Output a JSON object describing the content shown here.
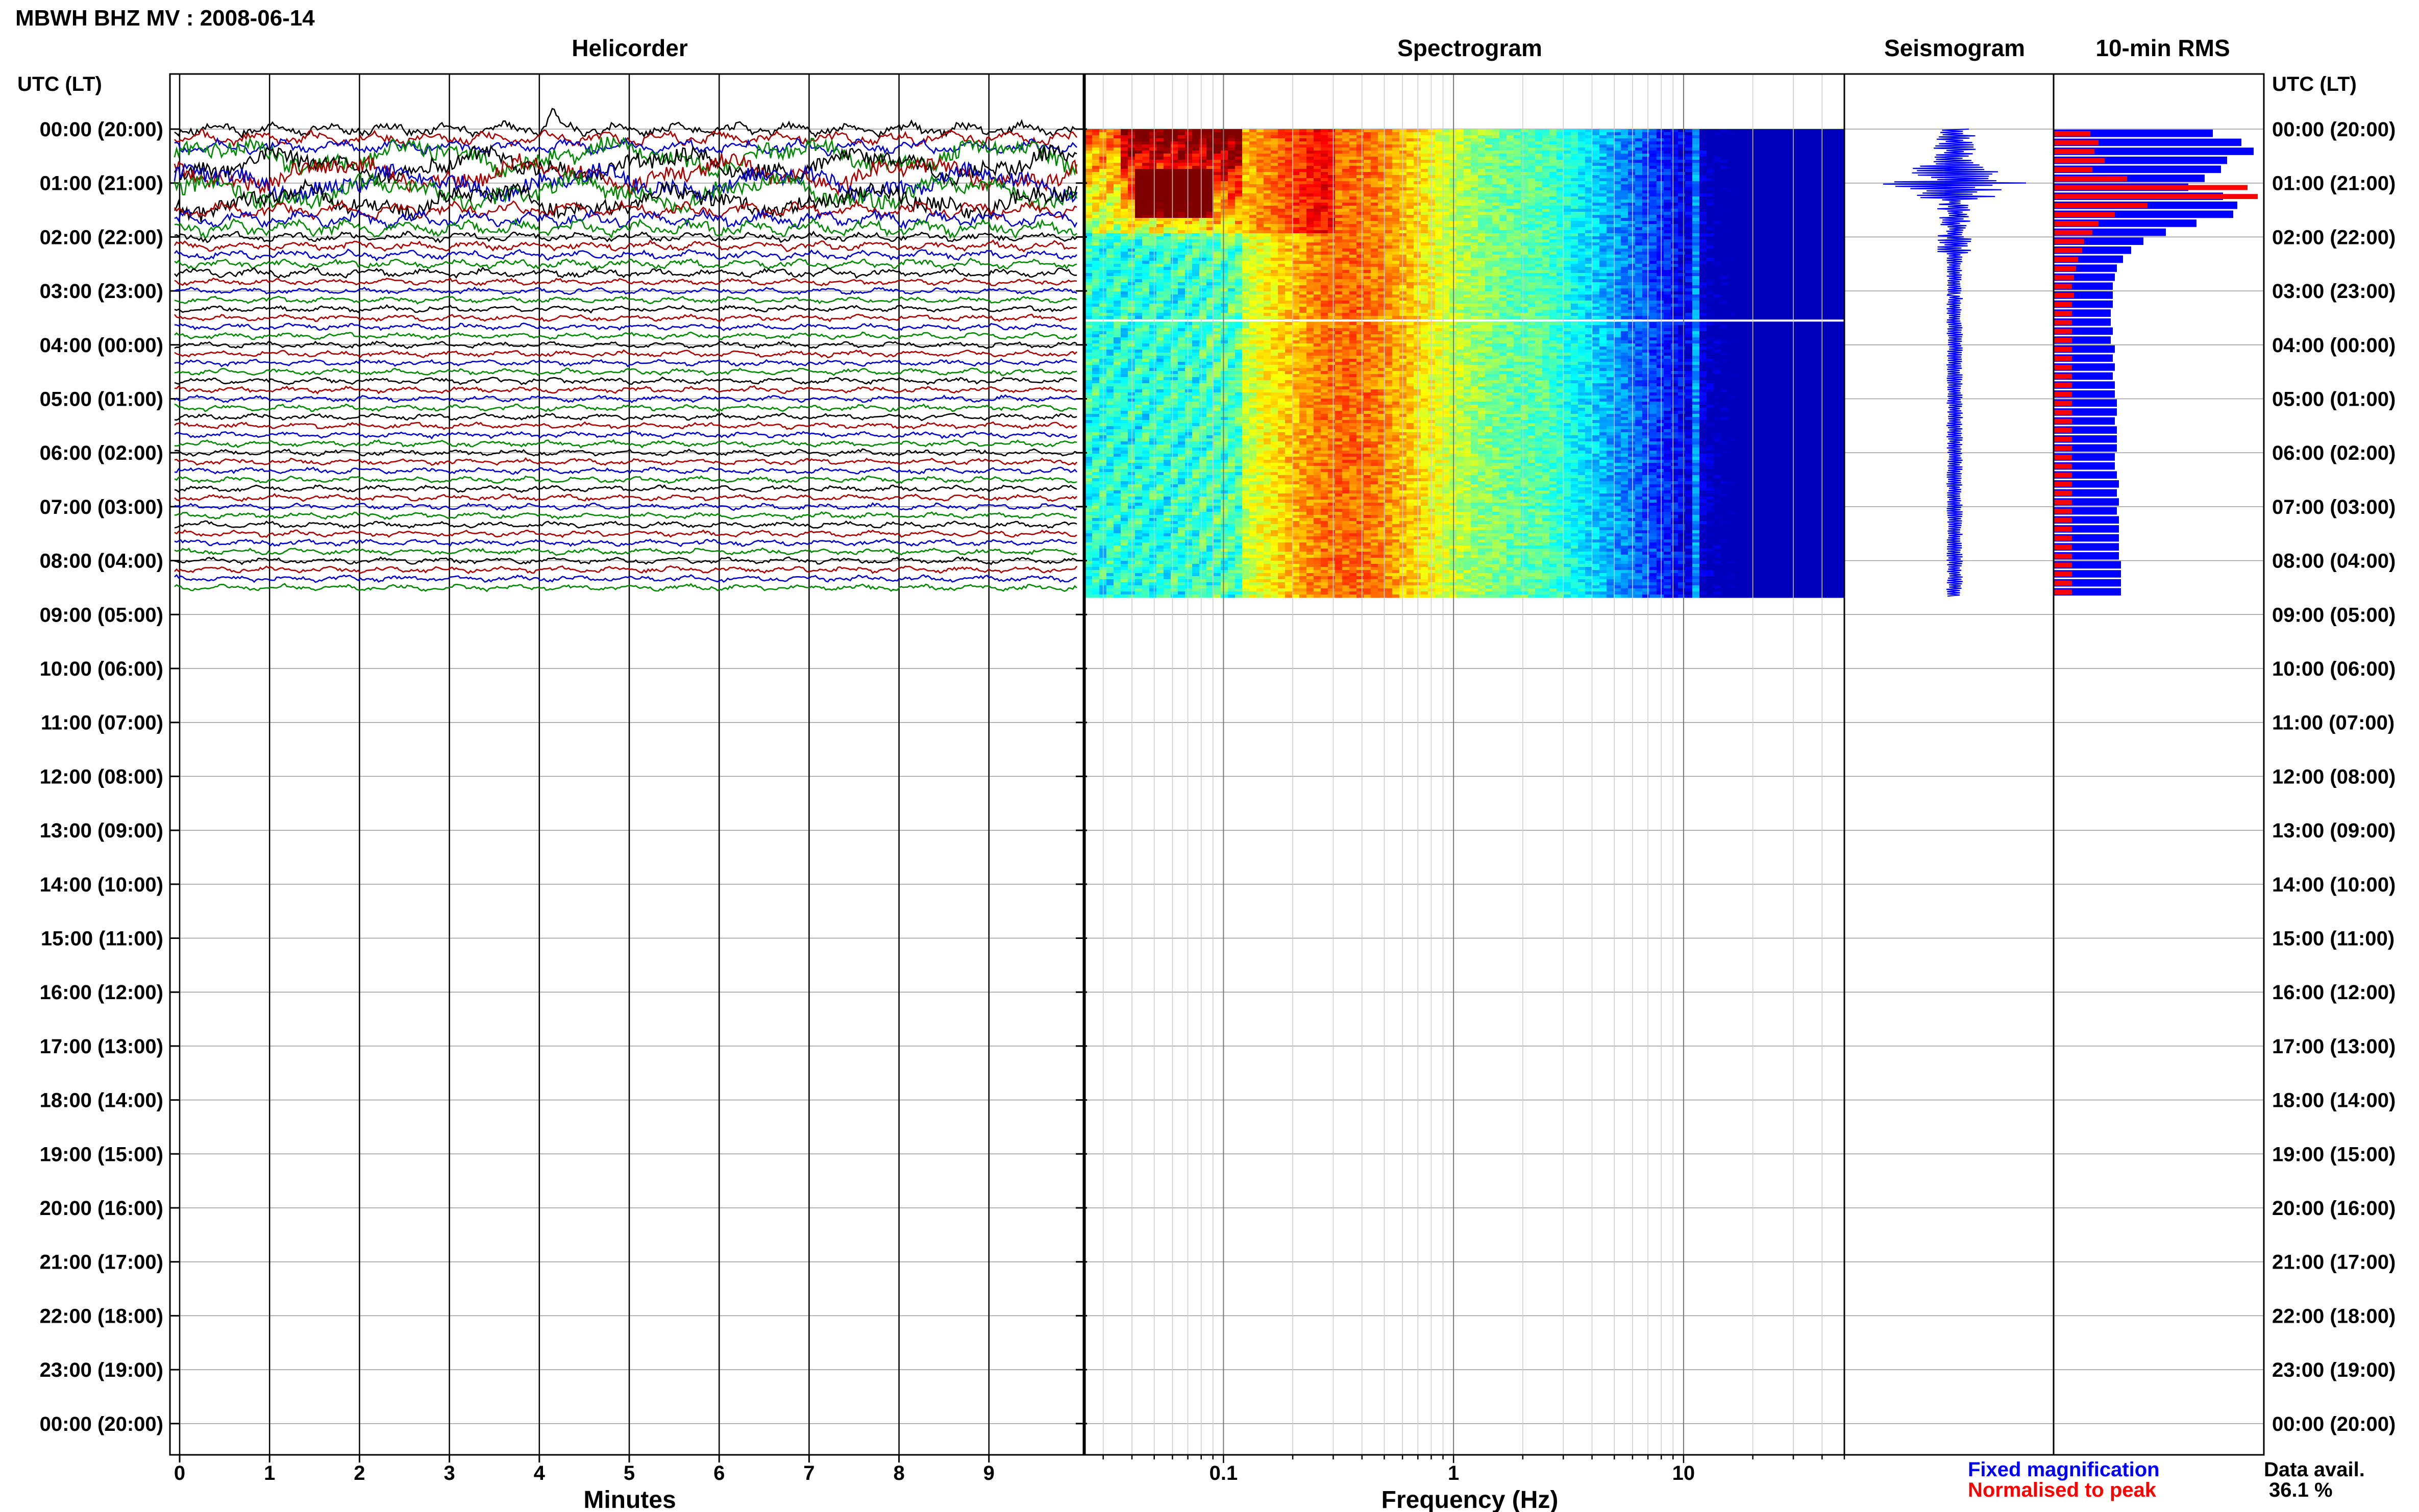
{
  "header": {
    "title": "MBWH BHZ MV : 2008-06-14",
    "utc_label_left": "UTC (LT)",
    "utc_label_right": "UTC (LT)"
  },
  "panels": {
    "helicorder": "Helicorder",
    "spectrogram": "Spectrogram",
    "seismogram": "Seismogram",
    "rms": "10-min RMS"
  },
  "legend": {
    "fixed": "Fixed magnification",
    "normalised": "Normalised to peak",
    "data_avail_label": "Data avail.",
    "data_avail_value": "36.1 %"
  },
  "colors": {
    "fixed": "#0000ff",
    "normalised": "#ff0000",
    "trace_cycle": [
      "#000000",
      "#aa0000",
      "#0000cc",
      "#008800"
    ]
  },
  "chart_data": [
    {
      "type": "line",
      "name": "helicorder",
      "xlabel": "Minutes",
      "x_ticks": [
        0,
        1,
        2,
        3,
        4,
        5,
        6,
        7,
        8,
        9
      ],
      "xlim": [
        0,
        10
      ],
      "time_labels": [
        "00:00 (20:00)",
        "01:00 (21:00)",
        "02:00 (22:00)",
        "03:00 (23:00)",
        "04:00 (00:00)",
        "05:00 (01:00)",
        "06:00 (02:00)",
        "07:00 (03:00)",
        "08:00 (04:00)",
        "09:00 (05:00)",
        "10:00 (06:00)",
        "11:00 (07:00)",
        "12:00 (08:00)",
        "13:00 (09:00)",
        "14:00 (10:00)",
        "15:00 (11:00)",
        "16:00 (12:00)",
        "17:00 (13:00)",
        "18:00 (14:00)",
        "19:00 (15:00)",
        "20:00 (16:00)",
        "21:00 (17:00)",
        "22:00 (18:00)",
        "23:00 (19:00)",
        "00:00 (20:00)"
      ],
      "data_hours": 8.66,
      "traces_per_hour": 6
    },
    {
      "type": "heatmap",
      "name": "spectrogram",
      "xlabel": "Frequency (Hz)",
      "x_scale": "log",
      "xlim": [
        0.025,
        50
      ],
      "x_tick_labels": [
        "0.1",
        "1",
        "10"
      ],
      "x_tick_values": [
        0.1,
        1,
        10
      ],
      "data_hours": 8.66
    },
    {
      "type": "line",
      "name": "seismogram",
      "data_hours": 8.66
    },
    {
      "type": "bar",
      "name": "rms_10min",
      "orientation": "horizontal",
      "interval_minutes": 10,
      "series": [
        {
          "name": "Fixed magnification",
          "values": [
            0.78,
            0.92,
            0.98,
            0.85,
            0.82,
            0.74,
            0.66,
            0.83,
            0.9,
            0.88,
            0.7,
            0.55,
            0.44,
            0.38,
            0.34,
            0.31,
            0.3,
            0.29,
            0.29,
            0.29,
            0.28,
            0.28,
            0.29,
            0.28,
            0.3,
            0.29,
            0.3,
            0.29,
            0.3,
            0.3,
            0.31,
            0.31,
            0.3,
            0.31,
            0.31,
            0.31,
            0.3,
            0.3,
            0.31,
            0.32,
            0.31,
            0.32,
            0.31,
            0.32,
            0.32,
            0.32,
            0.32,
            0.32,
            0.33,
            0.33,
            0.33,
            0.33
          ]
        },
        {
          "name": "Normalised to peak",
          "values": [
            0.18,
            0.22,
            0.2,
            0.25,
            0.19,
            0.36,
            0.95,
            1.0,
            0.46,
            0.3,
            0.22,
            0.19,
            0.15,
            0.14,
            0.12,
            0.11,
            0.1,
            0.09,
            0.1,
            0.09,
            0.09,
            0.09,
            0.09,
            0.09,
            0.09,
            0.09,
            0.09,
            0.09,
            0.09,
            0.09,
            0.09,
            0.09,
            0.09,
            0.09,
            0.09,
            0.09,
            0.09,
            0.09,
            0.09,
            0.09,
            0.09,
            0.09,
            0.09,
            0.09,
            0.09,
            0.09,
            0.09,
            0.09,
            0.09,
            0.09,
            0.09,
            0.09
          ]
        }
      ]
    }
  ]
}
